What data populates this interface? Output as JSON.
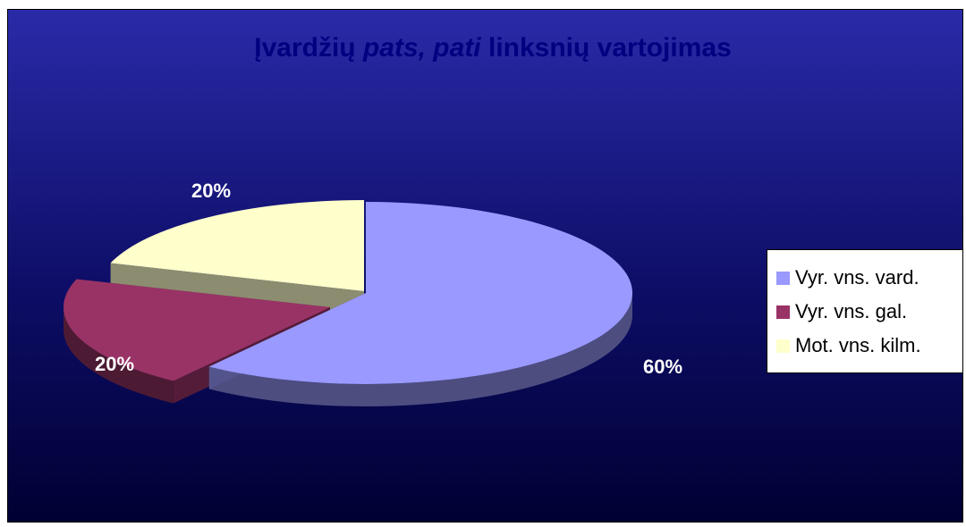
{
  "chart_data": {
    "type": "pie",
    "title_parts": [
      {
        "text": "Įvardžių ",
        "italic": false
      },
      {
        "text": "pats, pati",
        "italic": true
      },
      {
        "text": " linksnių vartojimas",
        "italic": false
      }
    ],
    "categories": [
      "Vyr. vns. vard.",
      "Vyr. vns. gal.",
      "Mot. vns. kilm."
    ],
    "values": [
      60,
      20,
      20
    ],
    "labels": [
      "60%",
      "20%",
      "20%"
    ],
    "colors": [
      "#9999ff",
      "#993366",
      "#ffffcc"
    ],
    "label_color": "#ffffff",
    "title_color": "#000080",
    "legend_position": "right",
    "exploded": true,
    "style": "3d"
  }
}
